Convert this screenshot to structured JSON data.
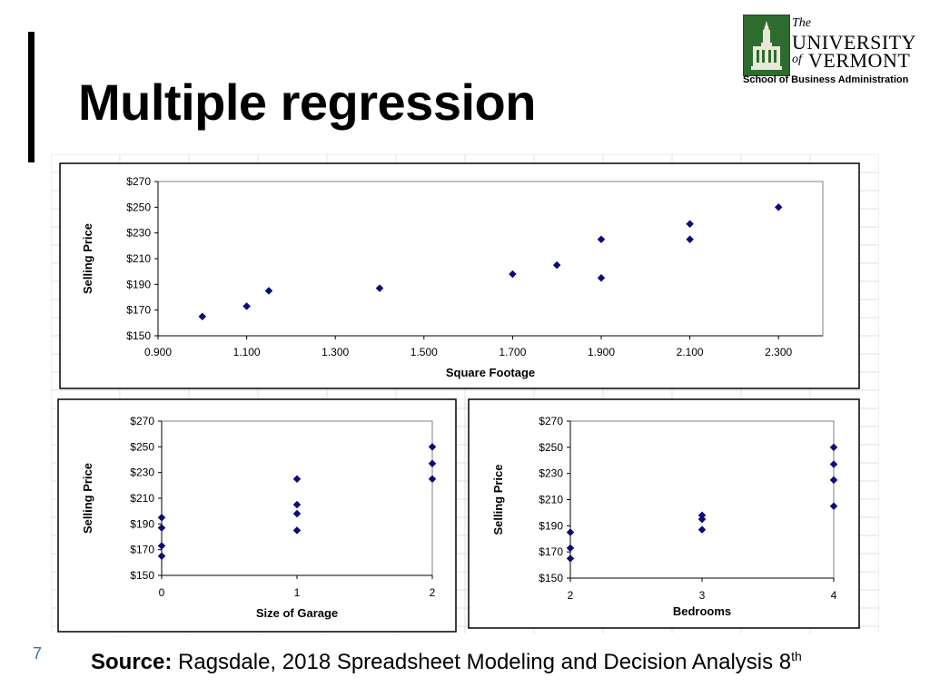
{
  "slide": {
    "title": "Multiple regression",
    "page_number": "7",
    "source_label": "Source:",
    "source_text": "Ragsdale, 2018 Spreadsheet Modeling and Decision Analysis 8",
    "source_sup": "th"
  },
  "logo": {
    "the": "The",
    "university": "UNIVERSITY",
    "of": "of",
    "vermont": "VERMONT",
    "school": "School of Business Administration"
  },
  "colors": {
    "marker": "#0a0a7a",
    "logo_green": "#2e6b2e",
    "page_num": "#3a6fb0"
  },
  "chart_data": [
    {
      "type": "scatter",
      "title": "",
      "xlabel": "Square Footage",
      "ylabel": "Selling Price",
      "xlim": [
        0.9,
        2.4
      ],
      "ylim": [
        150,
        270
      ],
      "xticks": [
        0.9,
        1.1,
        1.3,
        1.5,
        1.7,
        1.9,
        2.1,
        2.3
      ],
      "xtick_labels": [
        "0.900",
        "1.100",
        "1.300",
        "1.500",
        "1.700",
        "1.900",
        "2.100",
        "2.300"
      ],
      "yticks": [
        150,
        170,
        190,
        210,
        230,
        250,
        270
      ],
      "ytick_labels": [
        "$150",
        "$170",
        "$190",
        "$210",
        "$230",
        "$250",
        "$270"
      ],
      "points": [
        [
          1.0,
          165
        ],
        [
          1.1,
          173
        ],
        [
          1.15,
          185
        ],
        [
          1.4,
          187
        ],
        [
          1.7,
          198
        ],
        [
          1.8,
          205
        ],
        [
          1.9,
          195
        ],
        [
          1.9,
          225
        ],
        [
          2.1,
          225
        ],
        [
          2.1,
          237
        ],
        [
          2.3,
          250
        ]
      ]
    },
    {
      "type": "scatter",
      "title": "",
      "xlabel": "Size of Garage",
      "ylabel": "Selling Price",
      "xlim": [
        0,
        2
      ],
      "ylim": [
        150,
        270
      ],
      "xticks": [
        0,
        1,
        2
      ],
      "xtick_labels": [
        "0",
        "1",
        "2"
      ],
      "yticks": [
        150,
        170,
        190,
        210,
        230,
        250,
        270
      ],
      "ytick_labels": [
        "$150",
        "$170",
        "$190",
        "$210",
        "$230",
        "$250",
        "$270"
      ],
      "points": [
        [
          0,
          165
        ],
        [
          0,
          173
        ],
        [
          0,
          187
        ],
        [
          0,
          195
        ],
        [
          1,
          185
        ],
        [
          1,
          198
        ],
        [
          1,
          205
        ],
        [
          1,
          225
        ],
        [
          2,
          225
        ],
        [
          2,
          237
        ],
        [
          2,
          250
        ]
      ]
    },
    {
      "type": "scatter",
      "title": "",
      "xlabel": "Bedrooms",
      "ylabel": "Selling Price",
      "xlim": [
        2,
        4
      ],
      "ylim": [
        150,
        270
      ],
      "xticks": [
        2,
        3,
        4
      ],
      "xtick_labels": [
        "2",
        "3",
        "4"
      ],
      "yticks": [
        150,
        170,
        190,
        210,
        230,
        250,
        270
      ],
      "ytick_labels": [
        "$150",
        "$170",
        "$190",
        "$210",
        "$230",
        "$250",
        "$270"
      ],
      "points": [
        [
          2,
          165
        ],
        [
          2,
          173
        ],
        [
          2,
          185
        ],
        [
          3,
          187
        ],
        [
          3,
          195
        ],
        [
          3,
          198
        ],
        [
          4,
          205
        ],
        [
          4,
          225
        ],
        [
          4,
          237
        ],
        [
          4,
          250
        ]
      ]
    }
  ]
}
